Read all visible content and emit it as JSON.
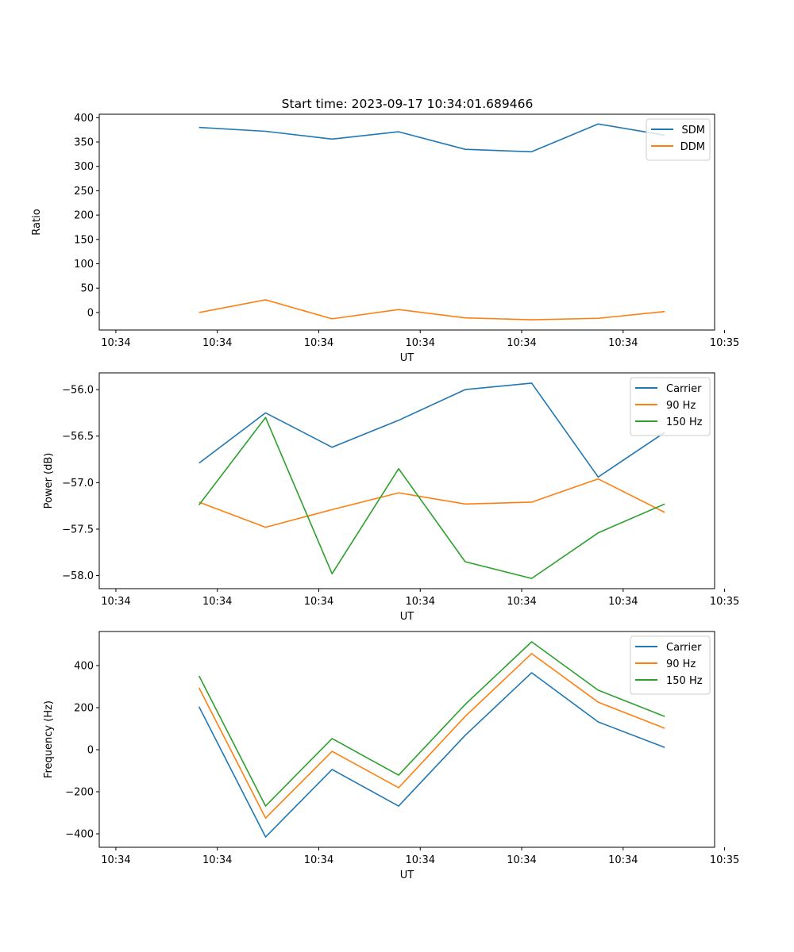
{
  "figure_title": "Start time: 2023-09-17 10:34:01.689466",
  "chart_data": [
    {
      "type": "line",
      "title": "Start time: 2023-09-17 10:34:01.689466",
      "xlabel": "UT",
      "ylabel": "Ratio",
      "x": [
        1,
        2,
        3,
        4,
        5,
        6,
        7,
        8
      ],
      "xlim": [
        -0.5,
        8.75
      ],
      "x_ticks": [
        -0.25,
        1.275,
        2.8,
        4.325,
        5.85,
        7.375,
        8.9
      ],
      "x_tick_labels": [
        "10:34",
        "10:34",
        "10:34",
        "10:34",
        "10:34",
        "10:34",
        "10:35"
      ],
      "ylim": [
        -36,
        407
      ],
      "y_ticks": [
        0,
        50,
        100,
        150,
        200,
        250,
        300,
        350,
        400
      ],
      "y_tick_labels": [
        "0",
        "50",
        "100",
        "150",
        "200",
        "250",
        "300",
        "350",
        "400"
      ],
      "grid": false,
      "legend_position": "upper-right",
      "series": [
        {
          "name": "SDM",
          "color": "#1f77b4",
          "values": [
            380,
            372,
            356,
            371,
            335,
            330,
            387,
            364
          ]
        },
        {
          "name": "DDM",
          "color": "#ff7f0e",
          "values": [
            0,
            26,
            -13,
            6,
            -11,
            -15,
            -12,
            2
          ]
        }
      ]
    },
    {
      "type": "line",
      "title": "",
      "xlabel": "UT",
      "ylabel": "Power (dB)",
      "x": [
        1,
        2,
        3,
        4,
        5,
        6,
        7,
        8
      ],
      "xlim": [
        -0.5,
        8.75
      ],
      "x_ticks": [
        -0.25,
        1.275,
        2.8,
        4.325,
        5.85,
        7.375,
        8.9
      ],
      "x_tick_labels": [
        "10:34",
        "10:34",
        "10:34",
        "10:34",
        "10:34",
        "10:34",
        "10:35"
      ],
      "ylim": [
        -58.14,
        -55.82
      ],
      "y_ticks": [
        -58.0,
        -57.5,
        -57.0,
        -56.5,
        -56.0
      ],
      "y_tick_labels": [
        "−58.0",
        "−57.5",
        "−57.0",
        "−56.5",
        "−56.0"
      ],
      "grid": false,
      "legend_position": "upper-right",
      "series": [
        {
          "name": "Carrier",
          "color": "#1f77b4",
          "values": [
            -56.79,
            -56.25,
            -56.62,
            -56.33,
            -56.0,
            -55.93,
            -56.94,
            -56.46
          ]
        },
        {
          "name": "90 Hz",
          "color": "#ff7f0e",
          "values": [
            -57.21,
            -57.48,
            -57.29,
            -57.11,
            -57.23,
            -57.21,
            -56.96,
            -57.32
          ]
        },
        {
          "name": "150 Hz",
          "color": "#2ca02c",
          "values": [
            -57.24,
            -56.3,
            -57.98,
            -56.85,
            -57.85,
            -58.03,
            -57.54,
            -57.23
          ]
        }
      ]
    },
    {
      "type": "line",
      "title": "",
      "xlabel": "UT",
      "ylabel": "Frequency (Hz)",
      "x": [
        1,
        2,
        3,
        4,
        5,
        6,
        7,
        8
      ],
      "xlim": [
        -0.5,
        8.75
      ],
      "x_ticks": [
        -0.25,
        1.275,
        2.8,
        4.325,
        5.85,
        7.375,
        8.9
      ],
      "x_tick_labels": [
        "10:34",
        "10:34",
        "10:34",
        "10:34",
        "10:34",
        "10:34",
        "10:35"
      ],
      "ylim": [
        -464,
        562
      ],
      "y_ticks": [
        -400,
        -200,
        0,
        200,
        400
      ],
      "y_tick_labels": [
        "−400",
        "−200",
        "0",
        "200",
        "400"
      ],
      "grid": false,
      "legend_position": "upper-right",
      "series": [
        {
          "name": "Carrier",
          "color": "#1f77b4",
          "values": [
            204,
            -415,
            -94,
            -268,
            68,
            366,
            132,
            11
          ]
        },
        {
          "name": "90 Hz",
          "color": "#ff7f0e",
          "values": [
            294,
            -325,
            -8,
            -181,
            158,
            457,
            226,
            102
          ]
        },
        {
          "name": "150 Hz",
          "color": "#2ca02c",
          "values": [
            351,
            -268,
            53,
            -121,
            215,
            513,
            283,
            158
          ]
        }
      ]
    }
  ]
}
